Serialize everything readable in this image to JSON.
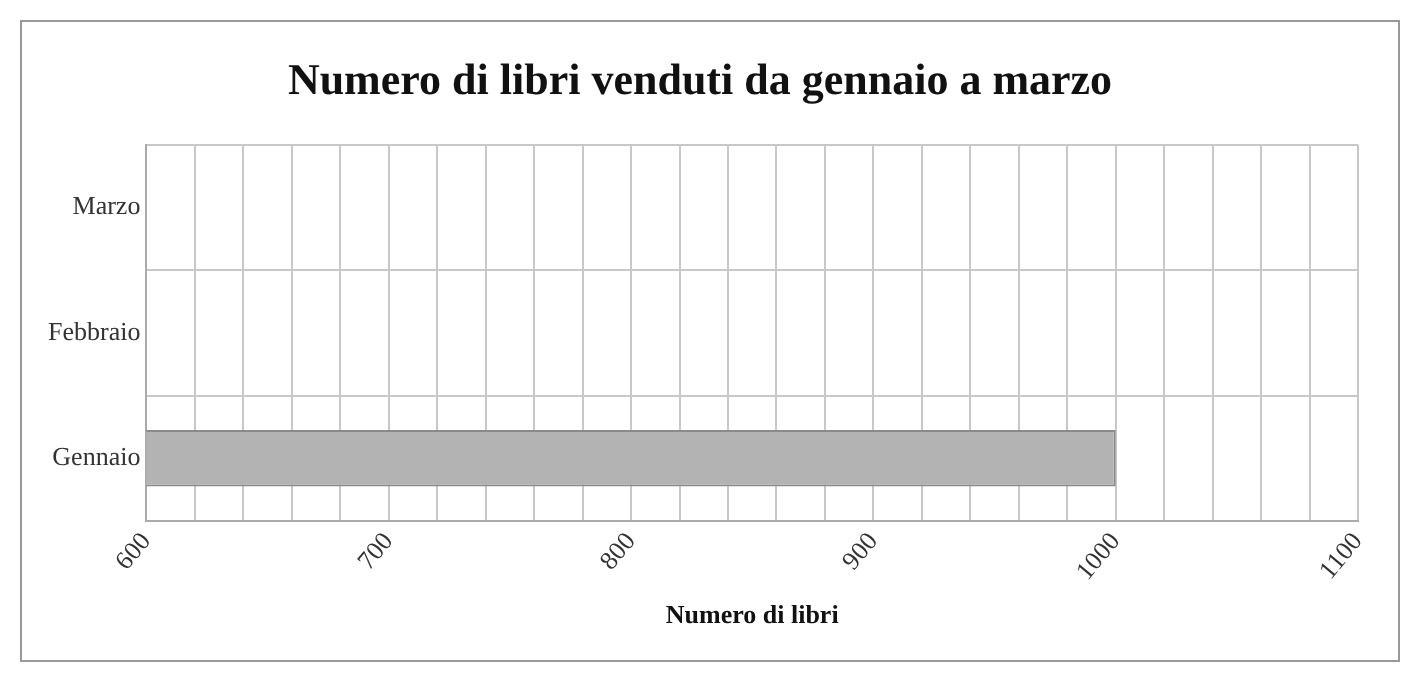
{
  "chart_data": {
    "type": "bar",
    "orientation": "horizontal",
    "title": "Numero di libri venduti da gennaio a marzo",
    "xlabel": "Numero di libri",
    "categories": [
      "Marzo",
      "Febbraio",
      "Gennaio"
    ],
    "values": [
      null,
      null,
      1000
    ],
    "color": "#b3b3b3",
    "xlim": [
      600,
      1100
    ],
    "xticks": [
      600,
      {
        "value": 620,
        "label": null
      },
      {
        "value": 640,
        "label": null
      },
      {
        "value": 660,
        "label": null
      },
      {
        "value": 680,
        "label": null
      },
      700,
      {
        "value": 720,
        "label": null
      },
      {
        "value": 740,
        "label": null
      },
      {
        "value": 760,
        "label": null
      },
      {
        "value": 780,
        "label": null
      },
      800,
      {
        "value": 820,
        "label": null
      },
      {
        "value": 840,
        "label": null
      },
      {
        "value": 860,
        "label": null
      },
      {
        "value": 880,
        "label": null
      },
      900,
      {
        "value": 920,
        "label": null
      },
      {
        "value": 940,
        "label": null
      },
      {
        "value": 960,
        "label": null
      },
      {
        "value": 980,
        "label": null
      },
      1000,
      {
        "value": 1020,
        "label": null
      },
      {
        "value": 1040,
        "label": null
      },
      {
        "value": 1060,
        "label": null
      },
      {
        "value": 1080,
        "label": null
      },
      1100
    ],
    "grid": true,
    "legend": false
  }
}
